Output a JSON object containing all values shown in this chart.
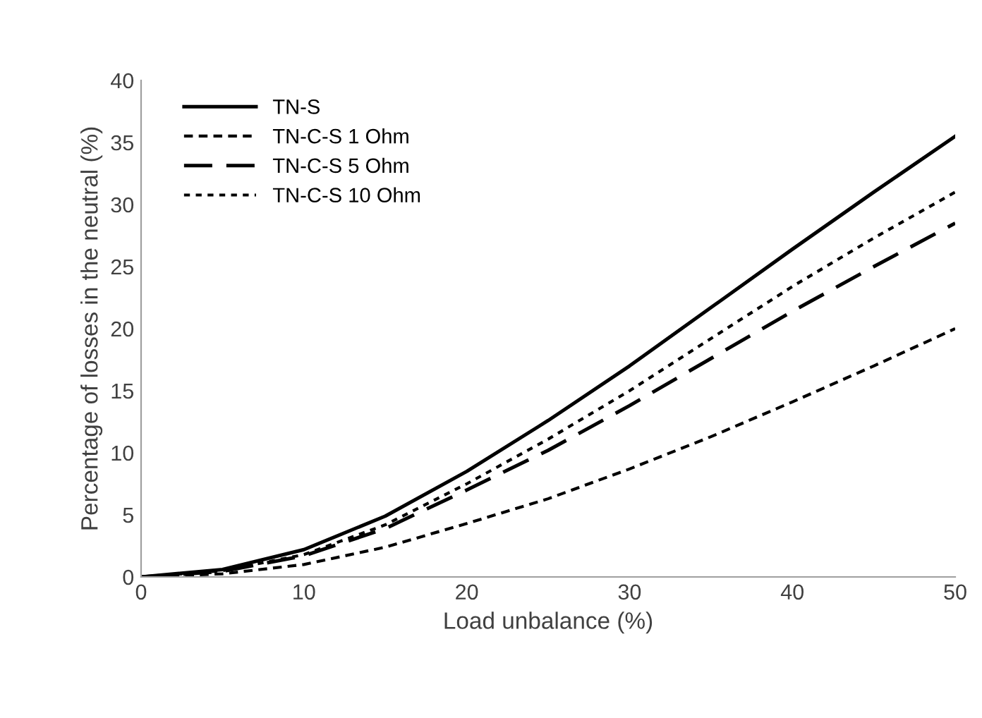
{
  "chart_data": {
    "type": "line",
    "xlabel": "Load unbalance (%)",
    "ylabel": "Percentage of losses in the neutral (%)",
    "x": [
      0,
      5,
      10,
      15,
      20,
      25,
      30,
      35,
      40,
      45,
      50
    ],
    "series": [
      {
        "name": "TN-S",
        "color": "#000000",
        "line_style": "solid",
        "values": [
          0,
          0.6,
          2.2,
          4.9,
          8.5,
          12.6,
          17.0,
          21.7,
          26.4,
          31.0,
          35.5
        ]
      },
      {
        "name": "TN-C-S 1 Ohm",
        "color": "#000000",
        "line_style": "dotted",
        "values": [
          0,
          0.25,
          1.0,
          2.4,
          4.3,
          6.3,
          8.7,
          11.3,
          14.1,
          17.0,
          20.0
        ]
      },
      {
        "name": "TN-C-S 5 Ohm",
        "color": "#000000",
        "line_style": "dashed",
        "values": [
          0,
          0.45,
          1.7,
          3.9,
          7.0,
          10.2,
          13.8,
          17.6,
          21.4,
          25.0,
          28.5
        ]
      },
      {
        "name": "TN-C-S 10 Ohm",
        "color": "#000000",
        "line_style": "dotted",
        "values": [
          0,
          0.5,
          1.8,
          4.2,
          7.5,
          11.1,
          15.0,
          19.2,
          23.4,
          27.3,
          31.0
        ]
      }
    ],
    "xlim": [
      0,
      50
    ],
    "xticks": [
      0,
      10,
      20,
      30,
      40,
      50
    ],
    "ylim": [
      0,
      40
    ],
    "yticks": [
      0,
      5,
      10,
      15,
      20,
      25,
      30,
      35,
      40
    ],
    "grid": false,
    "legend": "top left"
  }
}
